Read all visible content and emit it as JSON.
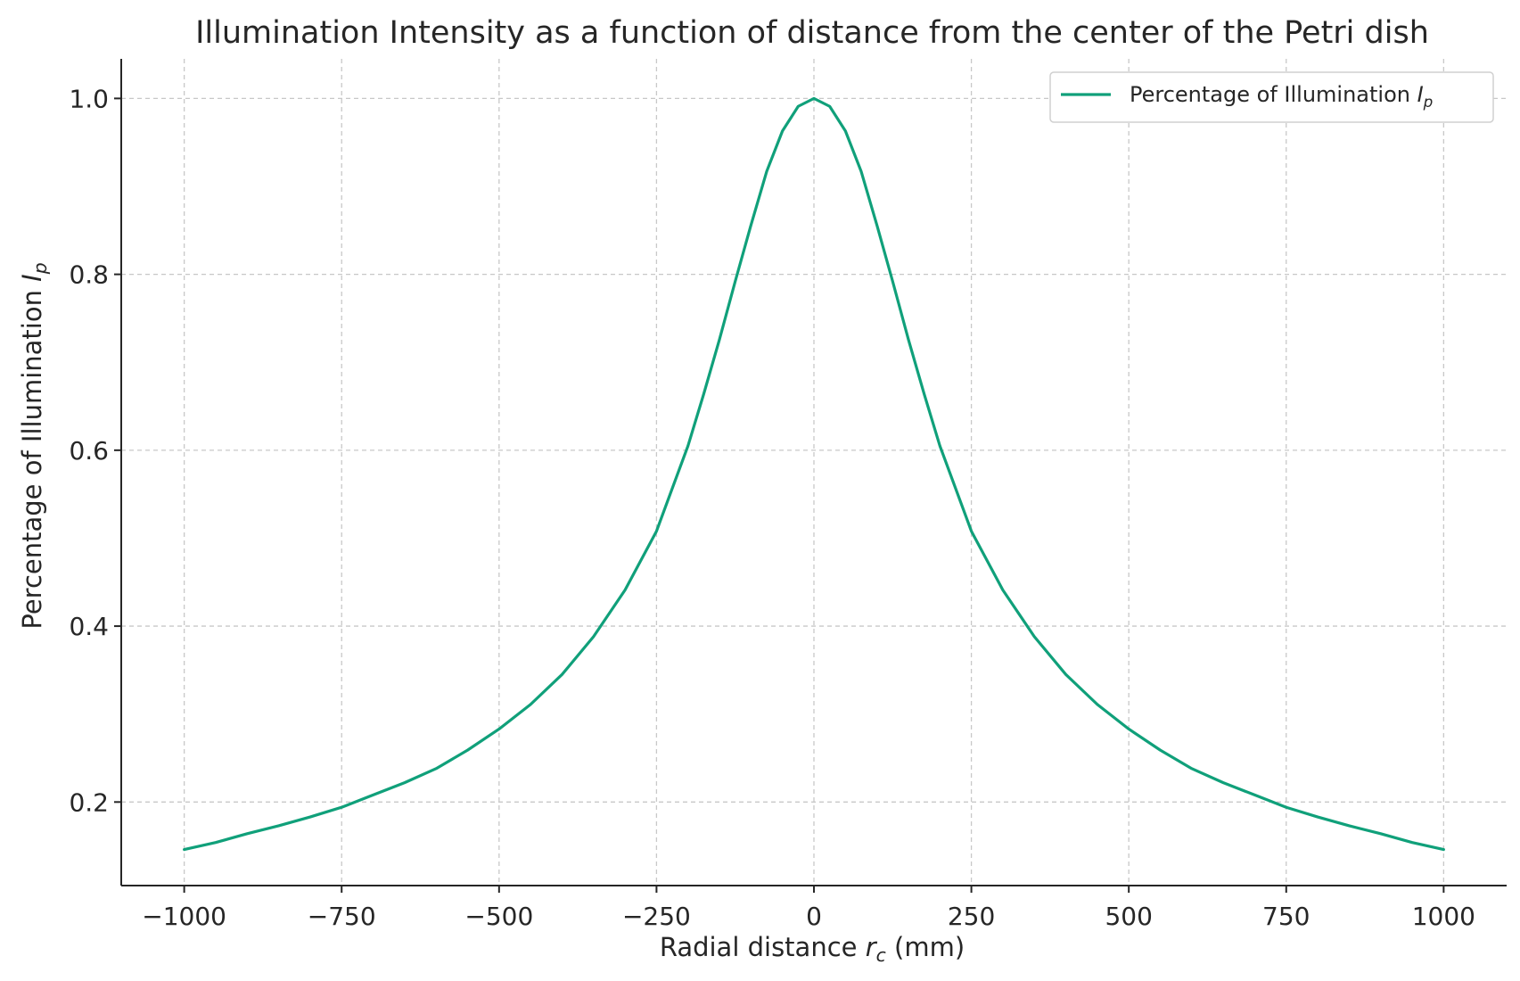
{
  "chart_data": {
    "type": "line",
    "title": "Illumination Intensity as a function of distance from the center of the Petri dish",
    "xlabel": "Radial distance r_c (mm)",
    "xlabel_parts": {
      "pre": "Radial distance ",
      "var": "r",
      "sub": "c",
      "post": " (mm)"
    },
    "ylabel": "Percentage of Illumination I_p",
    "ylabel_parts": {
      "pre": "Percentage of Illumination ",
      "var": "I",
      "sub": "p"
    },
    "xlim": [
      -1100,
      1100
    ],
    "ylim": [
      0.105,
      1.045
    ],
    "xticks": [
      -1000,
      -750,
      -500,
      -250,
      0,
      250,
      500,
      750,
      1000
    ],
    "xtick_labels": [
      "−1000",
      "−750",
      "−500",
      "−250",
      "0",
      "250",
      "500",
      "750",
      "1000"
    ],
    "yticks": [
      0.2,
      0.4,
      0.6,
      0.8,
      1.0
    ],
    "ytick_labels": [
      "0.2",
      "0.4",
      "0.6",
      "0.8",
      "1.0"
    ],
    "grid": true,
    "legend_position": "top-right",
    "series": [
      {
        "name": "Percentage of Illumination I_p",
        "legend_parts": {
          "pre": "Percentage of Illumination ",
          "var": "I",
          "sub": "p"
        },
        "color": "#10a07a",
        "x": [
          -1000,
          -950,
          -900,
          -850,
          -800,
          -750,
          -700,
          -650,
          -600,
          -550,
          -500,
          -450,
          -400,
          -350,
          -300,
          -250,
          -200,
          -175,
          -150,
          -125,
          -100,
          -75,
          -50,
          -25,
          0,
          25,
          50,
          75,
          100,
          125,
          150,
          175,
          200,
          250,
          300,
          350,
          400,
          450,
          500,
          550,
          600,
          650,
          700,
          750,
          800,
          850,
          900,
          950,
          1000
        ],
        "y": [
          0.146,
          0.154,
          0.164,
          0.173,
          0.183,
          0.194,
          0.208,
          0.222,
          0.238,
          0.259,
          0.283,
          0.311,
          0.345,
          0.388,
          0.441,
          0.508,
          0.605,
          0.664,
          0.726,
          0.792,
          0.856,
          0.917,
          0.963,
          0.991,
          1.0,
          0.991,
          0.963,
          0.917,
          0.856,
          0.792,
          0.726,
          0.664,
          0.605,
          0.508,
          0.441,
          0.388,
          0.345,
          0.311,
          0.283,
          0.259,
          0.238,
          0.222,
          0.208,
          0.194,
          0.183,
          0.173,
          0.164,
          0.154,
          0.146
        ]
      }
    ]
  }
}
